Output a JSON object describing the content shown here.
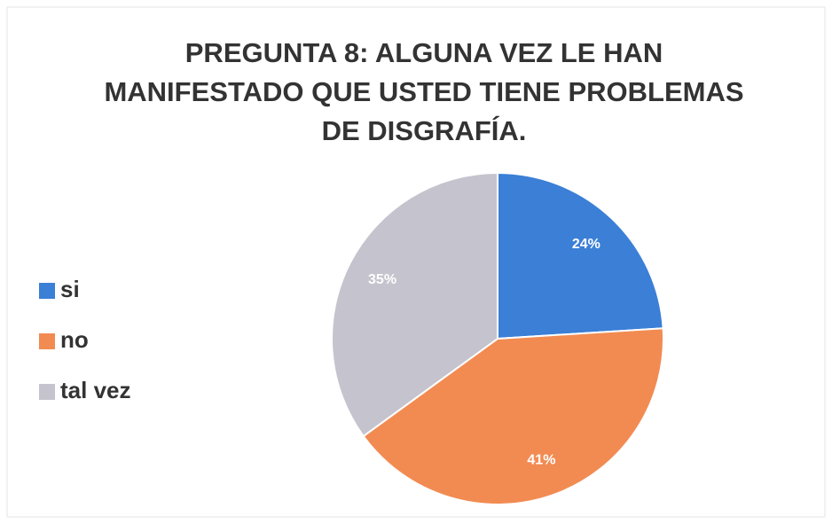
{
  "chart_data": {
    "type": "pie",
    "title": [
      "PREGUNTA 8: ALGUNA VEZ LE HAN",
      "MANIFESTADO QUE USTED TIENE PROBLEMAS",
      "DE DISGRAFÍA."
    ],
    "categories": [
      "si",
      "no",
      "tal vez"
    ],
    "values": [
      24,
      41,
      35
    ],
    "value_labels": [
      "24%",
      "41%",
      "35%"
    ],
    "colors": [
      "#3b7fd6",
      "#f28b52",
      "#c5c3cd"
    ],
    "legend": "left"
  }
}
